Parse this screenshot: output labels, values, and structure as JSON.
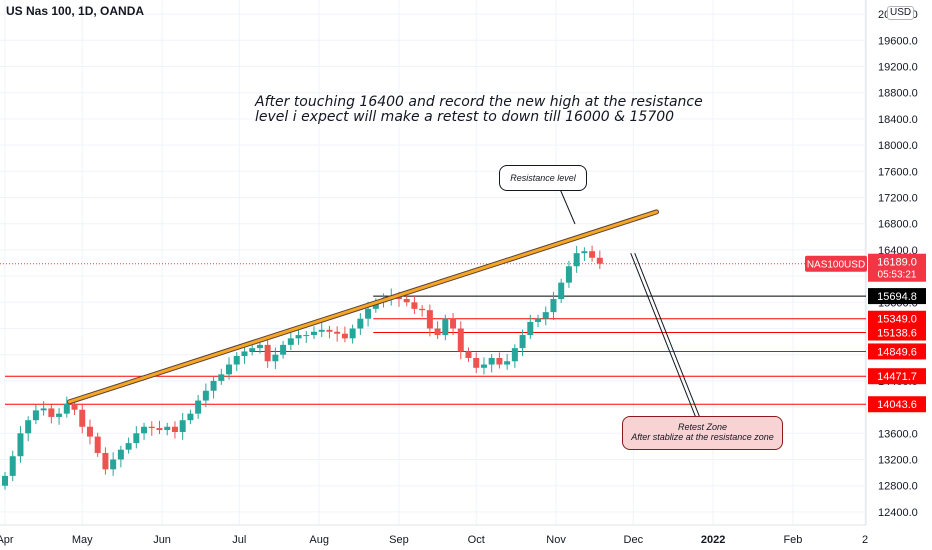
{
  "header": {
    "symbol": "US Nas 100, 1D, OANDA",
    "currency": "USD"
  },
  "annotations": {
    "main_text": "After touching 16400 and record the new high at the resistance\nlevel i expect will make a retest to down till  16000 & 15700",
    "resistance_callout": "Resistance level",
    "retest_title": "Retest Zone",
    "retest_sub": "After stablize at the resistance zone"
  },
  "colors": {
    "up": "#26a69a",
    "down": "#ef5350",
    "level": "#ff0000",
    "trendline": "#f5a623",
    "current": "#f23645"
  },
  "chart_data": {
    "type": "candlestick",
    "symbol": "NAS100USD",
    "ylim": [
      12200,
      20000
    ],
    "y_ticks": [
      12400,
      12800,
      13200,
      13600,
      14000,
      14400,
      14800,
      15200,
      15600,
      16000,
      16400,
      16800,
      17200,
      17600,
      18000,
      18400,
      18800,
      19200,
      19600,
      20000
    ],
    "y_tick_labels": [
      "12400.0",
      "12800.0",
      "13200.0",
      "13600.0",
      "14000.0",
      "14400.0",
      "14800.0",
      "15200.0",
      "15600.0",
      "16000.0",
      "16400.0",
      "16800.0",
      "17200.0",
      "17600.0",
      "18000.0",
      "18400.0",
      "18800.0",
      "19200.0",
      "19600.0",
      "20000.0"
    ],
    "x_ticks": [
      {
        "label": "Apr",
        "day": 0
      },
      {
        "label": "May",
        "day": 30
      },
      {
        "label": "Jun",
        "day": 61
      },
      {
        "label": "Jul",
        "day": 91
      },
      {
        "label": "Aug",
        "day": 122
      },
      {
        "label": "Sep",
        "day": 153
      },
      {
        "label": "Oct",
        "day": 183
      },
      {
        "label": "Nov",
        "day": 214
      },
      {
        "label": "Dec",
        "day": 244
      },
      {
        "label": "2022",
        "day": 275
      },
      {
        "label": "Feb",
        "day": 306
      },
      {
        "label": "2",
        "day": 334
      }
    ],
    "current_price": {
      "name": "NAS100USD",
      "value": 16189.0,
      "label": "16189.0",
      "countdown": "05:53:21"
    },
    "levels": [
      {
        "value": 15694.8,
        "label": "15694.8",
        "color": "#000000",
        "from_day": 143
      },
      {
        "value": 15349.0,
        "label": "15349.0",
        "color": "#ff0000",
        "from_day": 143
      },
      {
        "value": 15138.6,
        "label": "15138.6",
        "color": "#ff0000",
        "from_day": 143
      },
      {
        "value": 14849.6,
        "label": "14849.6",
        "color": "#ff0000",
        "from_day": 95
      },
      {
        "value": 14471.7,
        "label": "14471.7",
        "color": "#ff0000",
        "from_day": 0
      },
      {
        "value": 14043.6,
        "label": "14043.6",
        "color": "#ff0000",
        "from_day": 0
      }
    ],
    "trendline": {
      "from": {
        "day": 25,
        "value": 14080
      },
      "to": {
        "day": 253,
        "value": 16980
      }
    },
    "projection": {
      "from": {
        "day": 243,
        "value": 16350
      },
      "to": {
        "day": 270,
        "value": 13670
      }
    },
    "closes": [
      {
        "day": 0,
        "close": 12950
      },
      {
        "day": 3,
        "close": 13250
      },
      {
        "day": 6,
        "close": 13600
      },
      {
        "day": 9,
        "close": 13800
      },
      {
        "day": 12,
        "close": 13950
      },
      {
        "day": 15,
        "close": 13980
      },
      {
        "day": 18,
        "close": 13850
      },
      {
        "day": 21,
        "close": 13900
      },
      {
        "day": 24,
        "close": 14050
      },
      {
        "day": 27,
        "close": 13960
      },
      {
        "day": 30,
        "close": 13700
      },
      {
        "day": 33,
        "close": 13550
      },
      {
        "day": 36,
        "close": 13300
      },
      {
        "day": 39,
        "close": 13050
      },
      {
        "day": 42,
        "close": 13200
      },
      {
        "day": 45,
        "close": 13350
      },
      {
        "day": 48,
        "close": 13450
      },
      {
        "day": 51,
        "close": 13600
      },
      {
        "day": 54,
        "close": 13700
      },
      {
        "day": 57,
        "close": 13680
      },
      {
        "day": 60,
        "close": 13650
      },
      {
        "day": 63,
        "close": 13700
      },
      {
        "day": 66,
        "close": 13620
      },
      {
        "day": 69,
        "close": 13800
      },
      {
        "day": 72,
        "close": 13900
      },
      {
        "day": 75,
        "close": 14100
      },
      {
        "day": 78,
        "close": 14250
      },
      {
        "day": 81,
        "close": 14400
      },
      {
        "day": 84,
        "close": 14500
      },
      {
        "day": 87,
        "close": 14650
      },
      {
        "day": 90,
        "close": 14780
      },
      {
        "day": 93,
        "close": 14850
      },
      {
        "day": 96,
        "close": 14900
      },
      {
        "day": 99,
        "close": 14950
      },
      {
        "day": 102,
        "close": 14700
      },
      {
        "day": 105,
        "close": 14800
      },
      {
        "day": 108,
        "close": 14950
      },
      {
        "day": 111,
        "close": 15050
      },
      {
        "day": 114,
        "close": 15100
      },
      {
        "day": 117,
        "close": 15100
      },
      {
        "day": 120,
        "close": 15150
      },
      {
        "day": 123,
        "close": 15180
      },
      {
        "day": 126,
        "close": 15150
      },
      {
        "day": 129,
        "close": 15120
      },
      {
        "day": 132,
        "close": 15050
      },
      {
        "day": 135,
        "close": 15200
      },
      {
        "day": 138,
        "close": 15350
      },
      {
        "day": 141,
        "close": 15500
      },
      {
        "day": 144,
        "close": 15600
      },
      {
        "day": 147,
        "close": 15650
      },
      {
        "day": 150,
        "close": 15700
      },
      {
        "day": 153,
        "close": 15650
      },
      {
        "day": 156,
        "close": 15600
      },
      {
        "day": 159,
        "close": 15500
      },
      {
        "day": 162,
        "close": 15480
      },
      {
        "day": 165,
        "close": 15200
      },
      {
        "day": 168,
        "close": 15100
      },
      {
        "day": 171,
        "close": 15350
      },
      {
        "day": 174,
        "close": 15200
      },
      {
        "day": 177,
        "close": 14850
      },
      {
        "day": 180,
        "close": 14750
      },
      {
        "day": 183,
        "close": 14600
      },
      {
        "day": 186,
        "close": 14650
      },
      {
        "day": 189,
        "close": 14750
      },
      {
        "day": 192,
        "close": 14650
      },
      {
        "day": 195,
        "close": 14700
      },
      {
        "day": 198,
        "close": 14900
      },
      {
        "day": 201,
        "close": 15100
      },
      {
        "day": 204,
        "close": 15300
      },
      {
        "day": 207,
        "close": 15350
      },
      {
        "day": 210,
        "close": 15450
      },
      {
        "day": 213,
        "close": 15650
      },
      {
        "day": 216,
        "close": 15900
      },
      {
        "day": 219,
        "close": 16150
      },
      {
        "day": 222,
        "close": 16350
      },
      {
        "day": 225,
        "close": 16380
      },
      {
        "day": 228,
        "close": 16280
      },
      {
        "day": 231,
        "close": 16189
      }
    ]
  }
}
